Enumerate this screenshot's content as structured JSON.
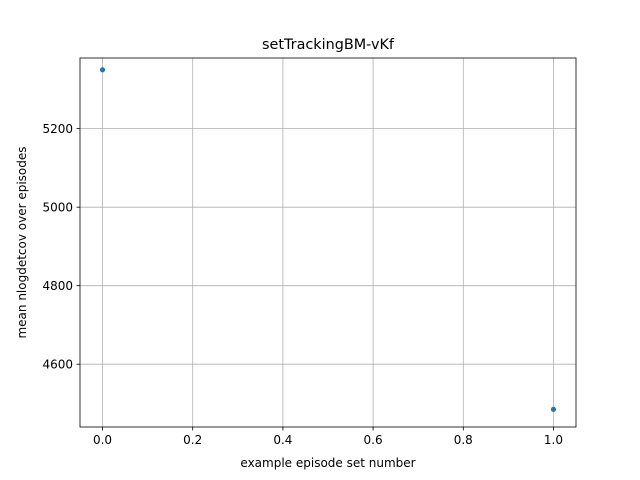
{
  "chart_data": {
    "type": "scatter",
    "title": "setTrackingBM-vKf",
    "xlabel": "example episode set number",
    "ylabel": "mean nlogdetcov over episodes",
    "xlim": [
      -0.05,
      1.05
    ],
    "ylim": [
      4440,
      5380
    ],
    "xticks": [
      0.0,
      0.2,
      0.4,
      0.6,
      0.8,
      1.0
    ],
    "xtick_labels": [
      "0.0",
      "0.2",
      "0.4",
      "0.6",
      "0.8",
      "1.0"
    ],
    "yticks": [
      4600,
      4800,
      5000,
      5200
    ],
    "ytick_labels": [
      "4600",
      "4800",
      "5000",
      "5200"
    ],
    "grid": true,
    "series": [
      {
        "color": "#1f77b4",
        "x": [
          0.0,
          1.0
        ],
        "y": [
          5350,
          4485
        ]
      }
    ]
  }
}
